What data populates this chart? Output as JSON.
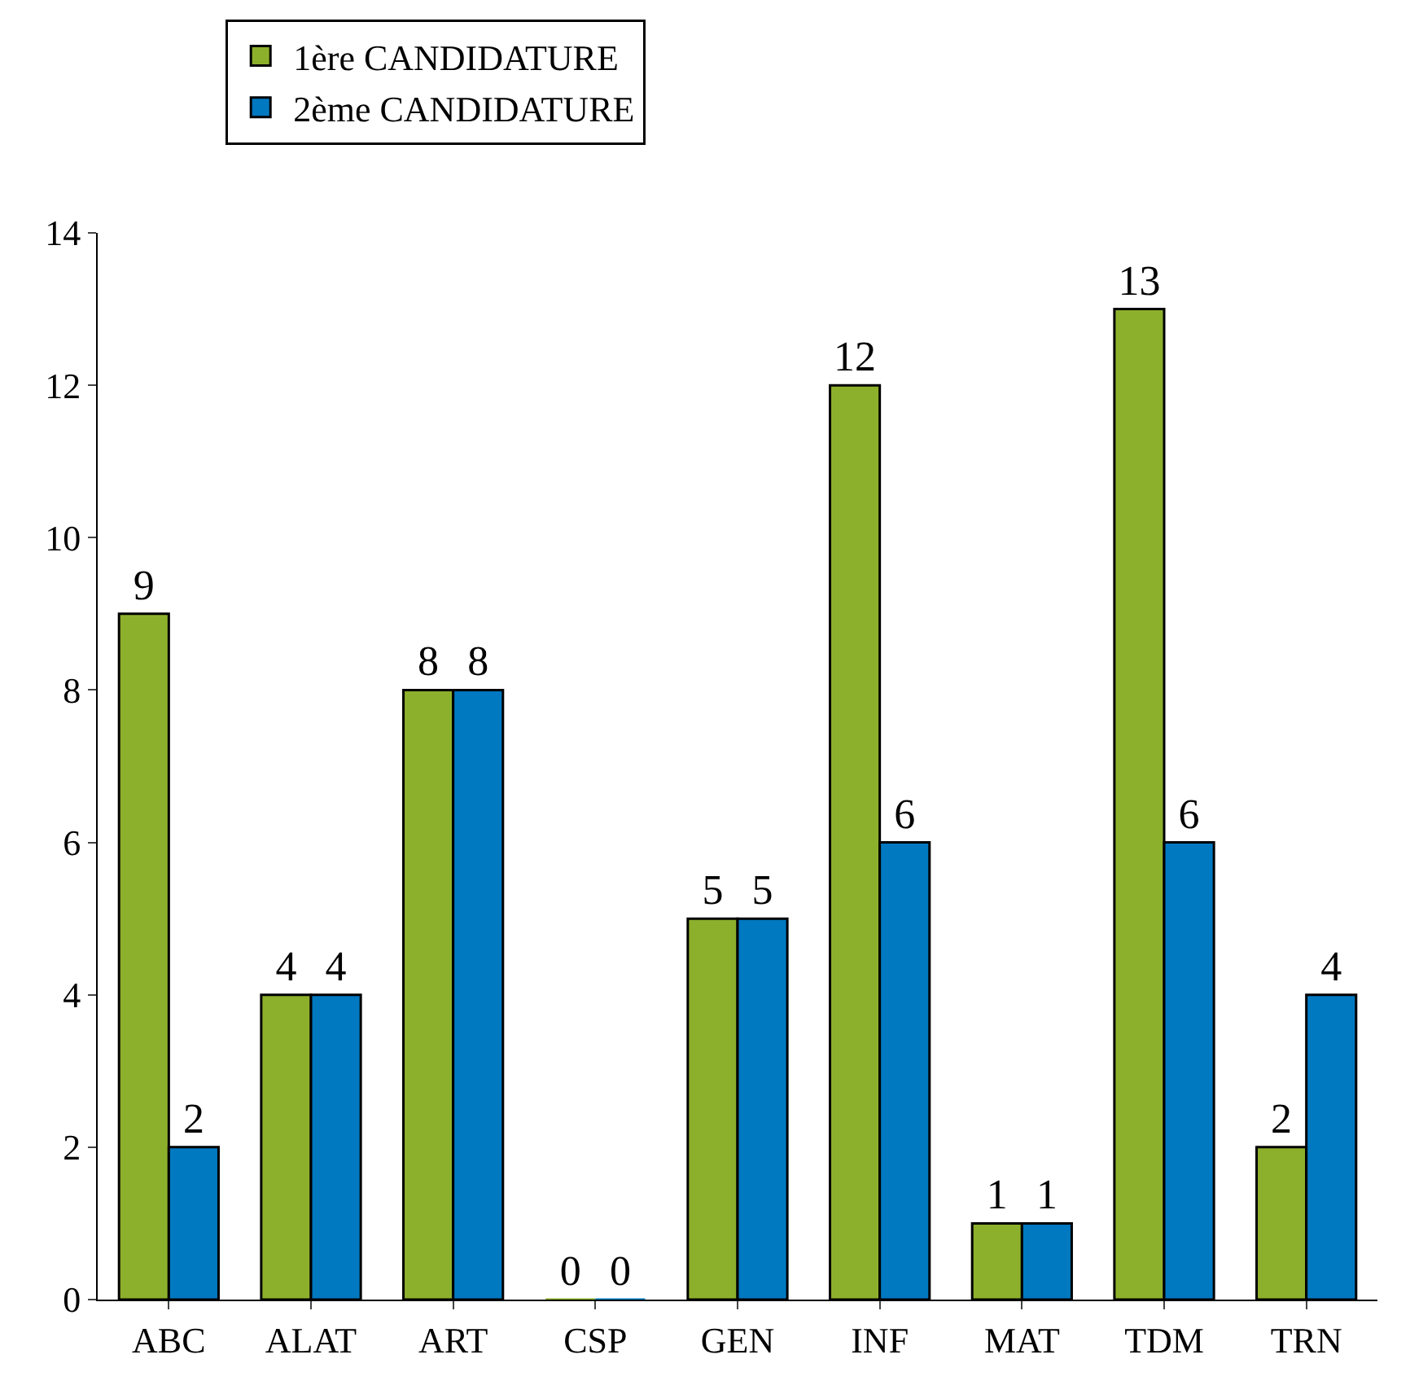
{
  "chart_data": {
    "type": "bar",
    "categories": [
      "ABC",
      "ALAT",
      "ART",
      "CSP",
      "GEN",
      "INF",
      "MAT",
      "TDM",
      "TRN"
    ],
    "series": [
      {
        "name": "1ère CANDIDATURE",
        "color": "#8db02c",
        "values": [
          9,
          4,
          8,
          0,
          5,
          12,
          1,
          13,
          2
        ]
      },
      {
        "name": "2ème CANDIDATURE",
        "color": "#0079c1",
        "values": [
          2,
          4,
          8,
          0,
          5,
          6,
          1,
          6,
          4
        ]
      }
    ],
    "ylim": [
      0,
      14
    ],
    "yticks": [
      0,
      2,
      4,
      6,
      8,
      10,
      12,
      14
    ],
    "data_labels": true,
    "legend": "top left"
  }
}
